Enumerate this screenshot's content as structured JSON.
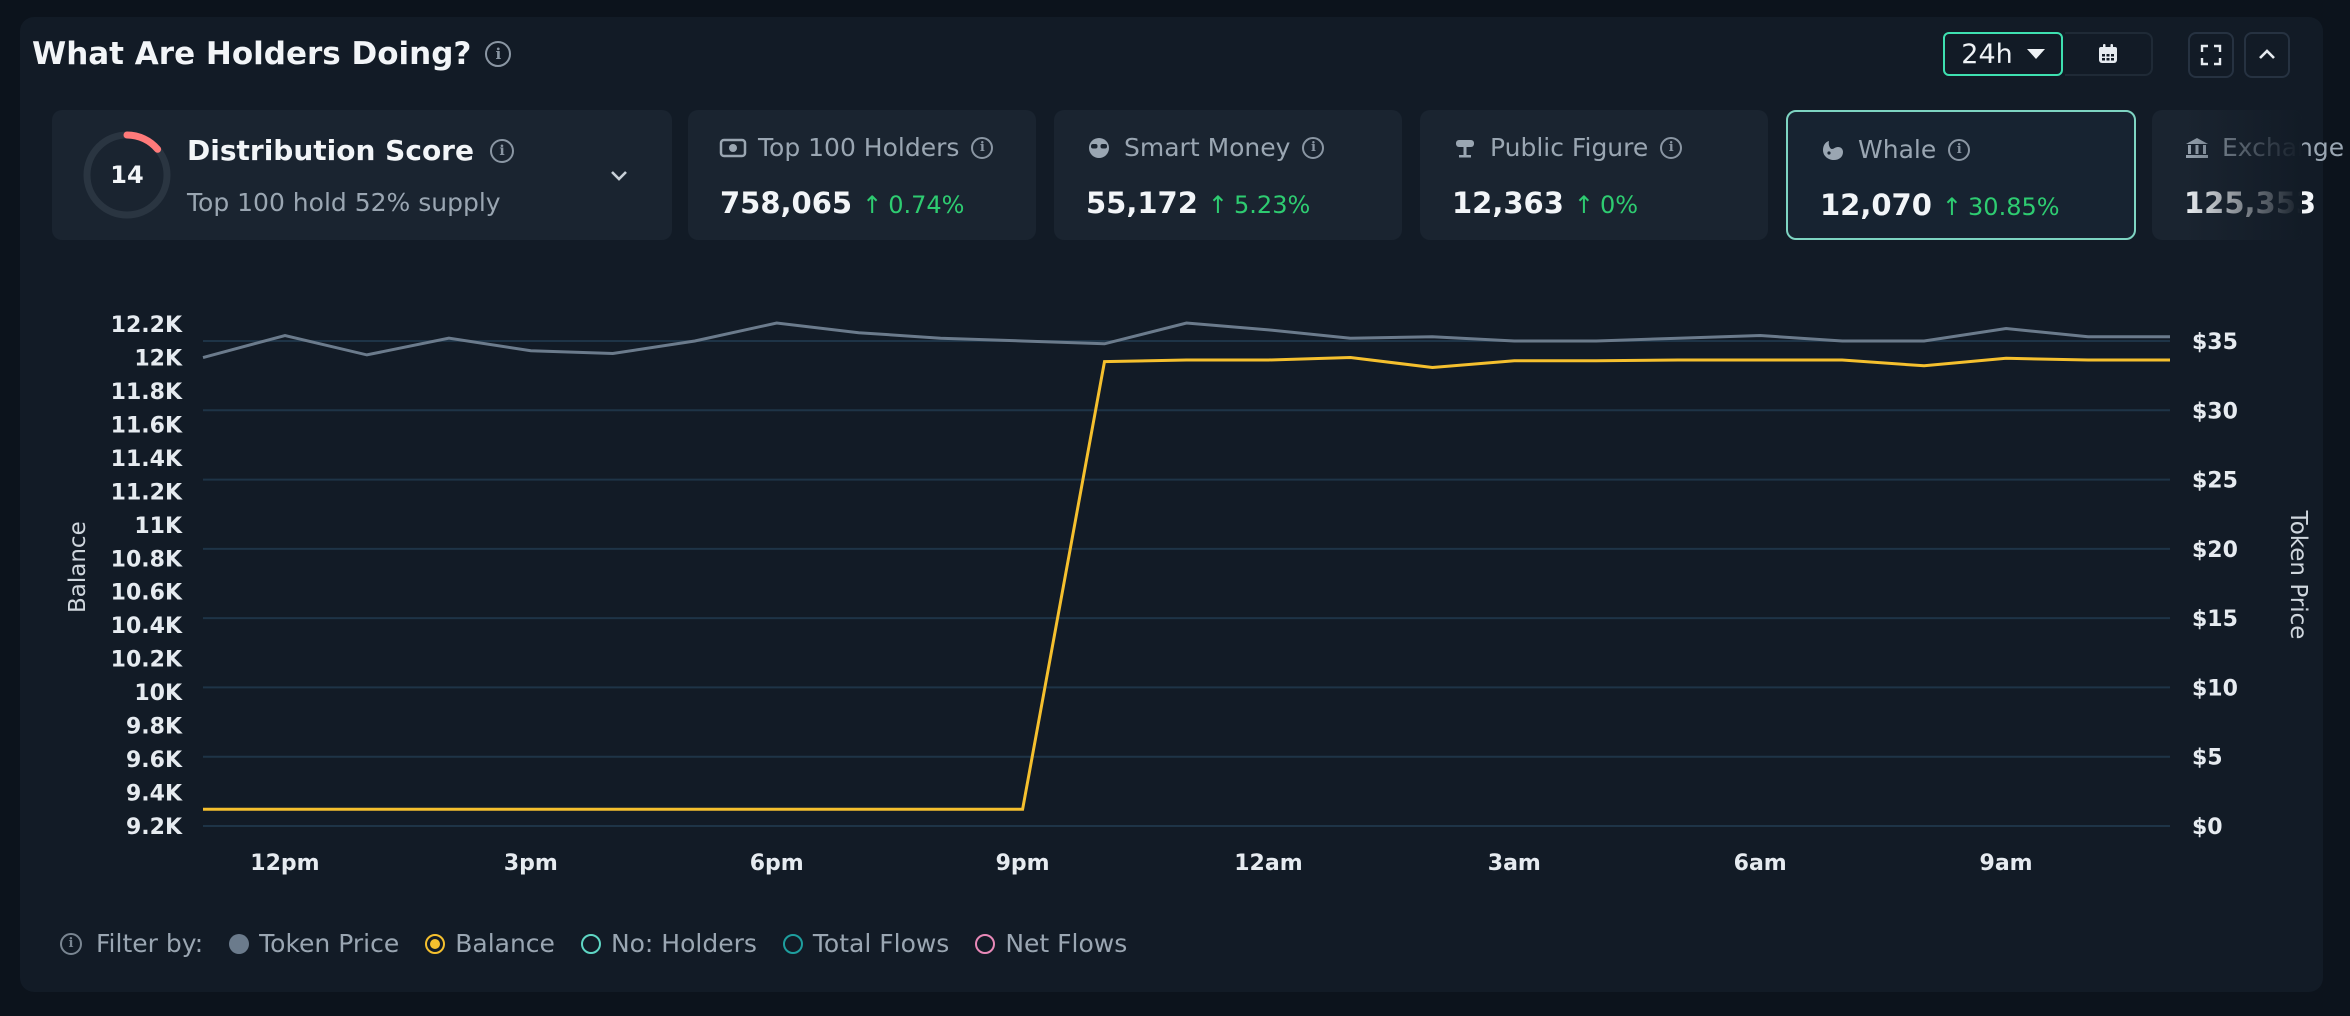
{
  "header": {
    "title": "What Are Holders Doing?",
    "range": "24h"
  },
  "colors": {
    "accent": "#3ee0b0",
    "balance_line": "#f5c02e",
    "price_line": "#6b7b8c",
    "positive": "#2ecc71",
    "score_ring": "#ff7a7a"
  },
  "distribution": {
    "score": "14",
    "title": "Distribution Score",
    "subtitle": "Top 100 hold 52% supply"
  },
  "cards": [
    {
      "label": "Top 100 Holders",
      "value": "758,065",
      "change": "0.74%",
      "icon": "cash-icon"
    },
    {
      "label": "Smart Money",
      "value": "55,172",
      "change": "5.23%",
      "icon": "sunglasses-icon"
    },
    {
      "label": "Public Figure",
      "value": "12,363",
      "change": "0%",
      "icon": "podium-icon"
    },
    {
      "label": "Whale",
      "value": "12,070",
      "change": "30.85%",
      "icon": "whale-icon",
      "selected": true
    },
    {
      "label": "Exchange",
      "value": "125,353",
      "icon": "bank-icon"
    }
  ],
  "chart_data": {
    "type": "line",
    "x_ticks": [
      "12pm",
      "3pm",
      "6pm",
      "9pm",
      "12am",
      "3am",
      "6am",
      "9am"
    ],
    "y_left_label": "Balance",
    "y_left_ticks": [
      "12.2K",
      "12K",
      "11.8K",
      "11.6K",
      "11.4K",
      "11.2K",
      "11K",
      "10.8K",
      "10.6K",
      "10.4K",
      "10.2K",
      "10K",
      "9.8K",
      "9.6K",
      "9.4K",
      "9.2K"
    ],
    "y_left_range": [
      9200,
      12200
    ],
    "y_right_label": "Token Price",
    "y_right_ticks": [
      "$35",
      "$30",
      "$25",
      "$20",
      "$15",
      "$10",
      "$5",
      "$0"
    ],
    "y_right_range": [
      0,
      35
    ],
    "x_hours": [
      11,
      12,
      13,
      14,
      15,
      16,
      17,
      18,
      19,
      20,
      21,
      22,
      23,
      24,
      25,
      26,
      27,
      28,
      29,
      30,
      31,
      32,
      33,
      34,
      35
    ],
    "series": [
      {
        "name": "Token Price",
        "axis": "right",
        "values": [
          33.8,
          35.4,
          34.0,
          35.2,
          34.3,
          34.1,
          35.0,
          36.3,
          35.6,
          35.2,
          35.0,
          34.8,
          36.3,
          35.8,
          35.2,
          35.3,
          35.0,
          35.0,
          35.2,
          35.4,
          35.0,
          35.0,
          35.9,
          35.3,
          35.3
        ]
      },
      {
        "name": "Balance",
        "axis": "left",
        "values": [
          9300,
          9300,
          9300,
          9300,
          9300,
          9300,
          9300,
          9300,
          9300,
          9300,
          9300,
          11975,
          11985,
          11985,
          12000,
          11940,
          11980,
          11980,
          11985,
          11985,
          11985,
          11950,
          11995,
          11985,
          11985
        ]
      }
    ],
    "filters": [
      "Token Price",
      "Balance",
      "No: Holders",
      "Total Flows",
      "Net Flows"
    ],
    "filter_label": "Filter by:"
  }
}
